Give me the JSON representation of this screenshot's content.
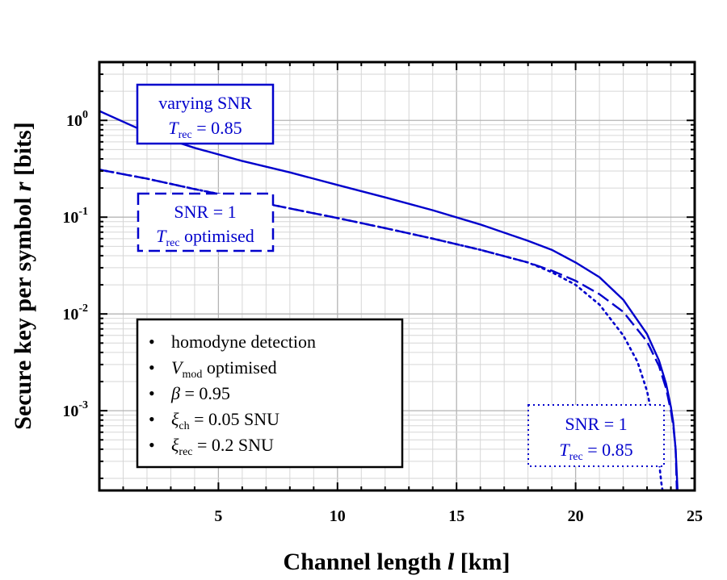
{
  "chart_data": {
    "type": "line",
    "xlabel": "Channel length l [km]",
    "ylabel": "Secure key per symbol r [bits]",
    "xlim": [
      0,
      25
    ],
    "ylim": [
      0.00015,
      4
    ],
    "yscale": "log",
    "grid": true,
    "x_ticks": [
      "5",
      "10",
      "15",
      "20",
      "25"
    ],
    "y_ticks": [
      {
        "base": "10",
        "exp": "0"
      },
      {
        "base": "10",
        "exp": "-1"
      },
      {
        "base": "10",
        "exp": "-2"
      },
      {
        "base": "10",
        "exp": "-3"
      }
    ],
    "series": [
      {
        "style": "solid",
        "color": "#0000cc",
        "x": [
          0,
          2,
          4,
          6,
          8,
          10,
          12,
          14,
          16,
          18,
          19,
          20,
          21,
          22,
          23,
          23.5,
          23.8,
          24.0,
          24.1,
          24.2,
          24.28
        ],
        "y": [
          1.25,
          0.75,
          0.52,
          0.38,
          0.29,
          0.215,
          0.16,
          0.118,
          0.084,
          0.057,
          0.046,
          0.034,
          0.024,
          0.014,
          0.0062,
          0.0033,
          0.0019,
          0.0011,
          0.00075,
          0.0004,
          0.00015
        ]
      },
      {
        "style": "dashed",
        "color": "#0000cc",
        "x": [
          0,
          2,
          4,
          6,
          8,
          10,
          12,
          14,
          16,
          18,
          19,
          20,
          21,
          22,
          23,
          23.5,
          23.8,
          24.0,
          24.1,
          24.2,
          24.25
        ],
        "y": [
          0.31,
          0.25,
          0.195,
          0.155,
          0.123,
          0.098,
          0.077,
          0.06,
          0.046,
          0.034,
          0.028,
          0.022,
          0.016,
          0.0105,
          0.0052,
          0.0029,
          0.0017,
          0.001,
          0.0007,
          0.0004,
          0.00015
        ]
      },
      {
        "style": "dotted",
        "color": "#0000cc",
        "x": [
          0,
          2,
          4,
          6,
          8,
          10,
          12,
          14,
          16,
          18,
          19,
          20,
          21,
          22,
          22.6,
          23.0,
          23.3,
          23.5,
          23.6,
          23.65
        ],
        "y": [
          0.31,
          0.25,
          0.195,
          0.155,
          0.123,
          0.098,
          0.077,
          0.06,
          0.046,
          0.034,
          0.027,
          0.02,
          0.0125,
          0.006,
          0.0032,
          0.0016,
          0.0007,
          0.0003,
          0.00018,
          0.00015
        ]
      }
    ],
    "annotations": [
      {
        "lines": [
          "varying SNR",
          "T_rec = 0.85"
        ],
        "line1": "varying SNR",
        "line2_var": "T",
        "line2_sub": "rec",
        "line2_rest": " = 0.85",
        "border": "solid"
      },
      {
        "lines": [
          "SNR = 1",
          "T_rec optimised"
        ],
        "line1": "SNR = 1",
        "line2_var": "T",
        "line2_sub": "rec",
        "line2_rest": " optimised",
        "border": "dashed"
      },
      {
        "lines": [
          "SNR = 1",
          "T_rec = 0.85"
        ],
        "line1": "SNR = 1",
        "line2_var": "T",
        "line2_sub": "rec",
        "line2_rest": " = 0.85",
        "border": "dotted"
      }
    ],
    "parameters_box": [
      {
        "sym": "",
        "sub": "",
        "rest": "homodyne detection"
      },
      {
        "sym": "V",
        "sub": "mod",
        "rest": " optimised"
      },
      {
        "sym": "β",
        "sub": "",
        "rest": "  = 0.95"
      },
      {
        "sym": "ξ",
        "sub": "ch",
        "rest": " = 0.05 SNU"
      },
      {
        "sym": "ξ",
        "sub": "rec",
        "rest": " = 0.2 SNU"
      }
    ]
  }
}
